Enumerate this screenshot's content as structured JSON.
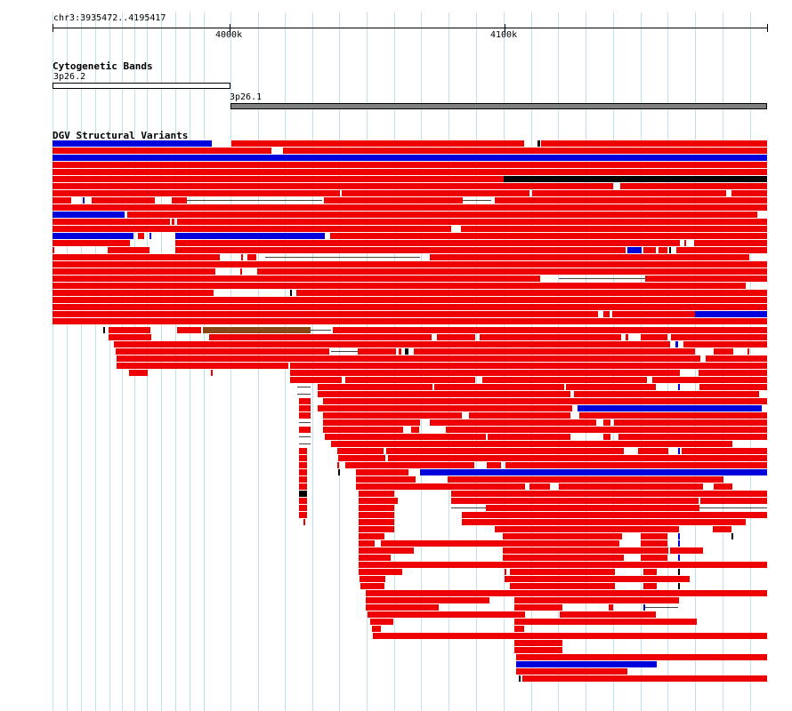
{
  "ruler": {
    "region": "chr3:3935472..4195417",
    "ticks": [
      {
        "label": "4000k",
        "pos": 4000000
      },
      {
        "label": "4100k",
        "pos": 4100000
      }
    ]
  },
  "cytoband_track": {
    "title": "Cytogenetic Bands",
    "bands": [
      {
        "name": "3p26.2",
        "start": 3935472,
        "end": 4000000,
        "stain": "gneg",
        "color": "#ffffff"
      },
      {
        "name": "3p26.1",
        "start": 4000000,
        "end": 4195417,
        "stain": "gpos50",
        "color": "#808080"
      }
    ]
  },
  "dgv_track": {
    "title": "DGV Structural Variants",
    "colors": {
      "loss": "#ee0000",
      "gain": "#0000dd",
      "gain_loss": "#000000",
      "inversion": "#8b4513",
      "connector": "#444444"
    }
  }
}
